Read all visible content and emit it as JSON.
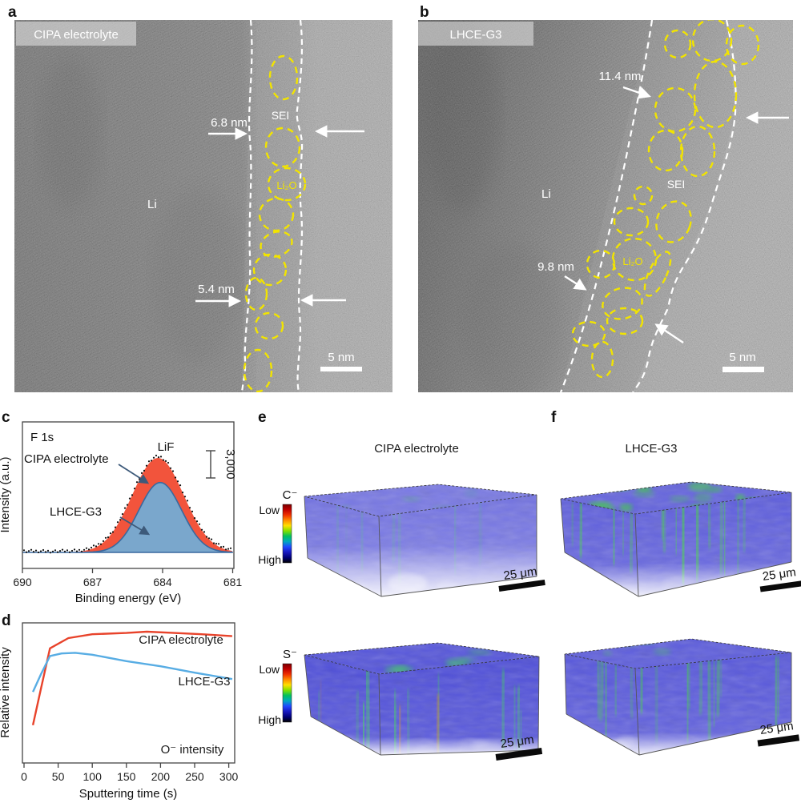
{
  "figure_type": "scientific-figure",
  "panels": {
    "a": {
      "letter": "a",
      "electrolyte": "CIPA electrolyte",
      "li": "Li",
      "sei": "SEI",
      "li2o": "Li₂O",
      "thickness_upper": "6.8 nm",
      "thickness_lower": "5.4 nm",
      "scale_bar": "5 nm"
    },
    "b": {
      "letter": "b",
      "electrolyte": "LHCE-G3",
      "li": "Li",
      "sei": "SEI",
      "li2o": "Li₂O",
      "thickness_upper": "11.4 nm",
      "thickness_lower": "9.8 nm",
      "scale_bar": "5 nm"
    },
    "c": {
      "letter": "c"
    },
    "d": {
      "letter": "d"
    },
    "e": {
      "letter": "e",
      "title": "CIPA electrolyte"
    },
    "f": {
      "letter": "f",
      "title": "LHCE-G3"
    }
  },
  "tof_sims": {
    "rows": [
      {
        "ion": "C⁻",
        "low_label": "Low",
        "high_label": "High",
        "scale_bars": [
          "25 μm",
          "25 μm"
        ]
      },
      {
        "ion": "S⁻",
        "low_label": "Low",
        "high_label": "High",
        "scale_bars": [
          "25 μm",
          "25 μm"
        ]
      }
    ],
    "colorbar_colors_top_to_bottom": [
      "#7a0000",
      "#c00000",
      "#f03000",
      "#ff8c00",
      "#ffe000",
      "#80e000",
      "#00c060",
      "#00a8c0",
      "#2048ff",
      "#1818c0",
      "#000078",
      "#000000"
    ]
  },
  "chart_data": [
    {
      "id": "xps_f1s",
      "type": "area",
      "title": "F 1s",
      "xlabel": "Binding energy (eV)",
      "ylabel": "Intensity (a.u.)",
      "x_ticks": [
        690,
        687,
        684,
        681
      ],
      "x_range": [
        690,
        681
      ],
      "grid": false,
      "peak_annotation": "LiF",
      "intensity_scale_bar": "3,000",
      "series": [
        {
          "name": "CIPA electrolyte",
          "fill": "#f2543c",
          "peak_center_eV": 684.2,
          "fwhm_eV": 2.6,
          "rel_height": 1.0
        },
        {
          "name": "LHCE-G3",
          "fill": "#7aa7cc",
          "stroke": "#39699f",
          "peak_center_eV": 684.1,
          "fwhm_eV": 2.15,
          "rel_height": 0.74
        }
      ]
    },
    {
      "id": "o_depth_profile",
      "type": "line",
      "xlabel": "Sputtering time (s)",
      "ylabel": "Relative intensity",
      "annotation": "O⁻ intensity",
      "x_ticks": [
        0,
        50,
        100,
        150,
        200,
        250,
        300
      ],
      "x_range": [
        0,
        305
      ],
      "grid": false,
      "series": [
        {
          "name": "CIPA electrolyte",
          "color": "#e8432b",
          "x": [
            13,
            25,
            38,
            65,
            100,
            150,
            180,
            220,
            260,
            305
          ],
          "y": [
            0.27,
            0.56,
            0.87,
            0.95,
            0.98,
            0.99,
            1.0,
            0.99,
            0.98,
            0.965
          ]
        },
        {
          "name": "LHCE-G3",
          "color": "#58ade4",
          "x": [
            13,
            25,
            38,
            55,
            75,
            100,
            150,
            200,
            250,
            305
          ],
          "y": [
            0.53,
            0.67,
            0.81,
            0.83,
            0.835,
            0.82,
            0.77,
            0.73,
            0.68,
            0.63
          ]
        }
      ]
    }
  ]
}
